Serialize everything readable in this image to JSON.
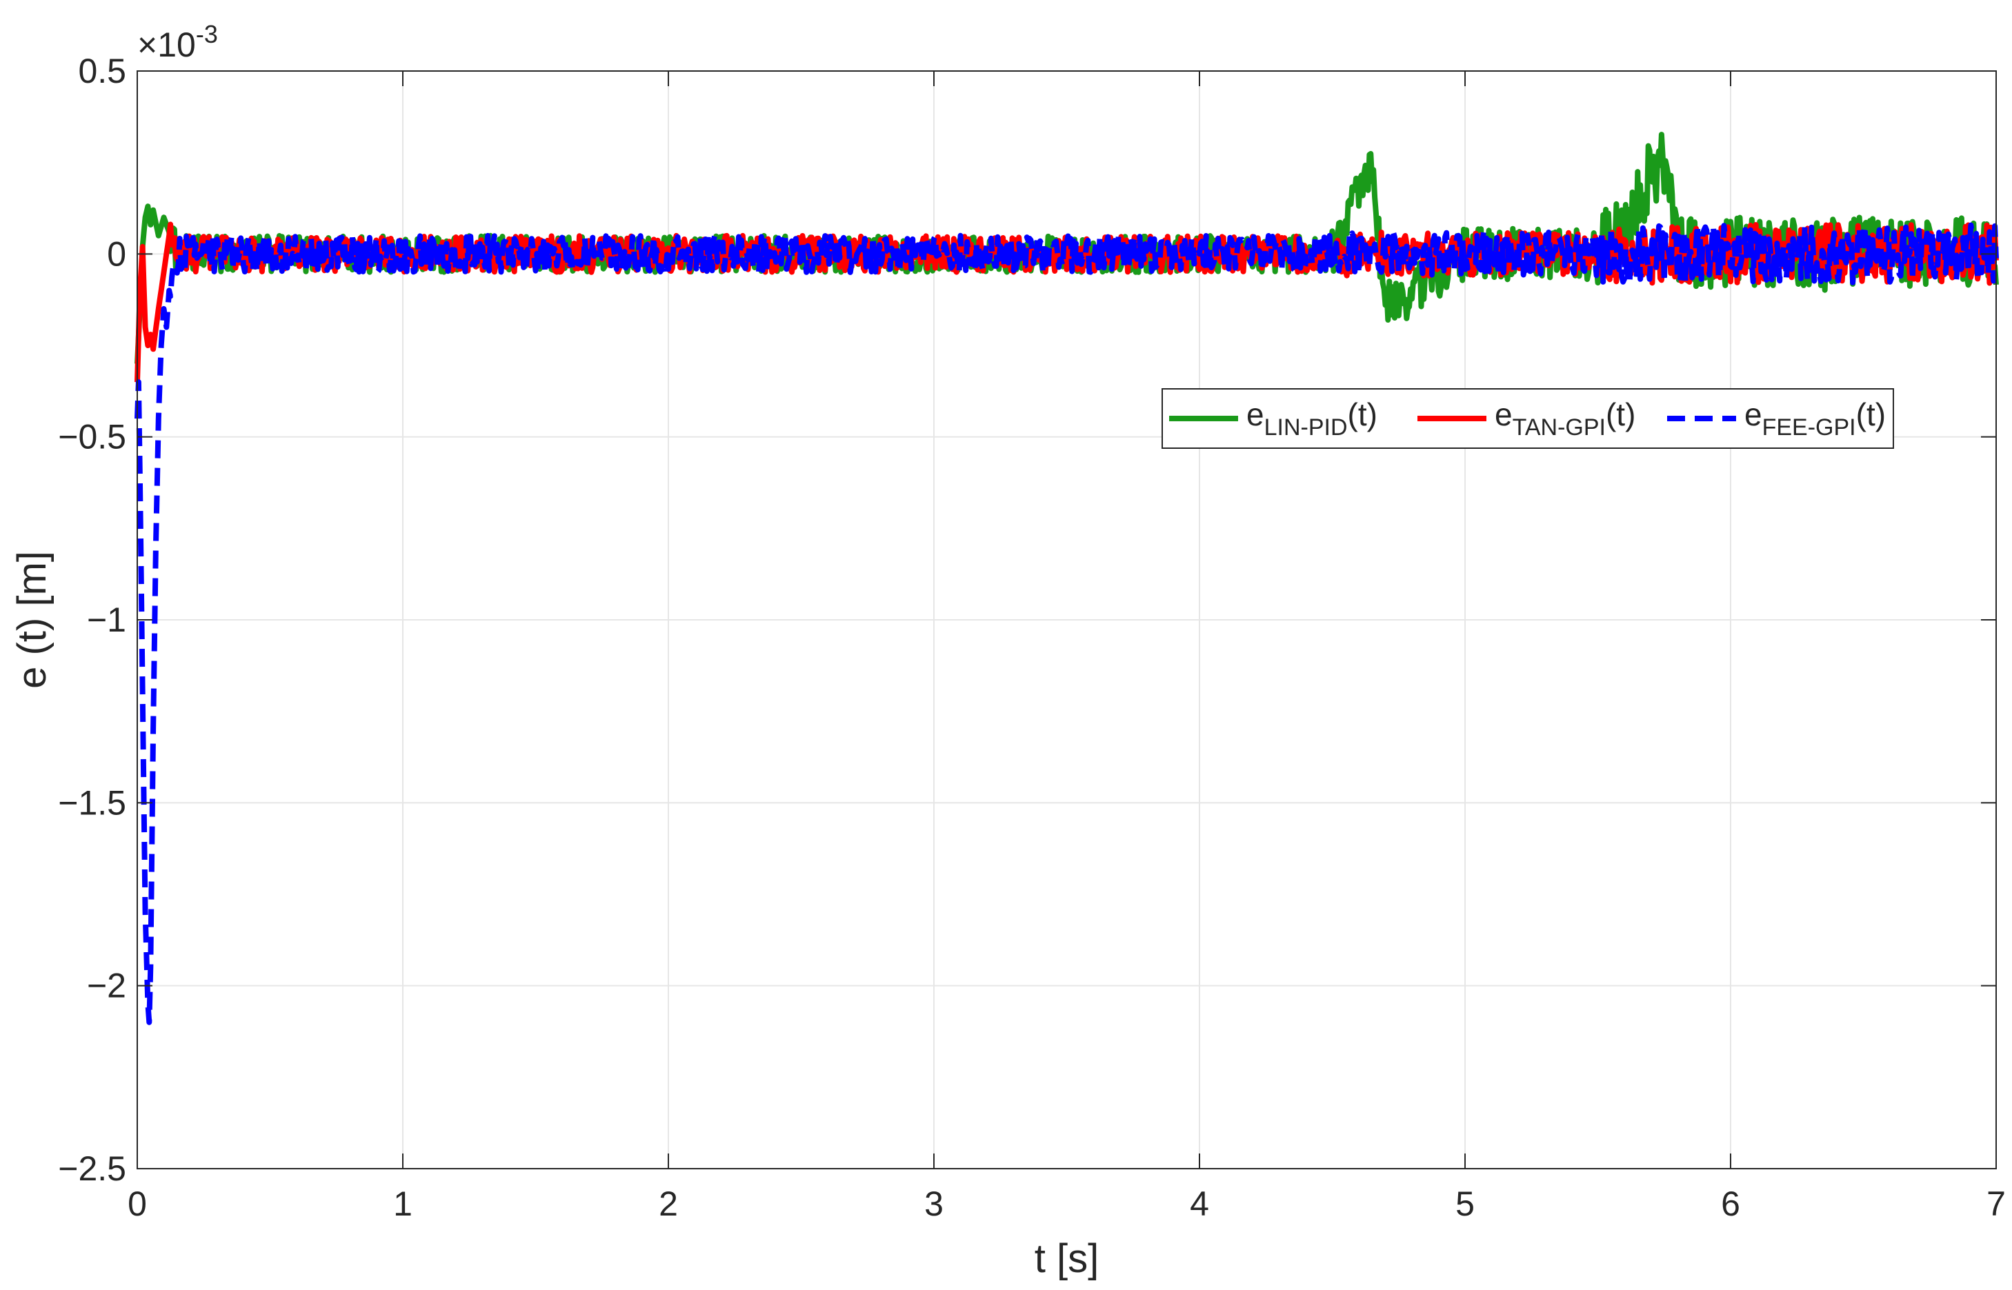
{
  "chart_data": {
    "type": "line",
    "xlabel": "t [s]",
    "ylabel": "e (t) [m]",
    "exponent_label": "×10",
    "exponent_power": "-3",
    "xlim": [
      0,
      7
    ],
    "ylim": [
      -2.5,
      0.5
    ],
    "y_scale_factor": 0.001,
    "x_ticks": [
      0,
      1,
      2,
      3,
      4,
      5,
      6,
      7
    ],
    "x_tick_labels": [
      "0",
      "1",
      "2",
      "3",
      "4",
      "5",
      "6",
      "7"
    ],
    "y_ticks": [
      -2.5,
      -2,
      -1.5,
      -1,
      -0.5,
      0,
      0.5
    ],
    "y_tick_labels": [
      "−2.5",
      "−2",
      "−1.5",
      "−1",
      "−0.5",
      "0",
      "0.5"
    ],
    "grid": true,
    "legend_position": "upper-right",
    "legend_layout": "horizontal",
    "series": [
      {
        "name_base": "e",
        "name_sub": "LIN-PID",
        "name_suffix": "(t)",
        "color": "#1a9a1a",
        "style": "solid",
        "x": [
          0,
          0.01,
          0.02,
          0.03,
          0.04,
          0.05,
          0.06,
          0.08,
          0.1,
          0.15,
          0.5,
          1,
          2,
          3,
          3.5,
          4,
          4.5,
          4.65,
          4.7,
          5,
          5.5,
          5.75,
          5.8,
          6,
          6.5,
          7
        ],
        "y": [
          -0.3,
          -0.15,
          0.02,
          0.1,
          0.13,
          0.08,
          0.12,
          0.05,
          0.1,
          0.0,
          0.0,
          0.0,
          0.0,
          0.0,
          0.0,
          0.0,
          0.0,
          0.24,
          -0.15,
          0.0,
          0.0,
          0.26,
          0.0,
          0.0,
          0.0,
          0.0
        ],
        "noise_amplitude": [
          0.05,
          0.07,
          0.1
        ]
      },
      {
        "name_base": "e",
        "name_sub": "TAN-GPI",
        "name_suffix": "(t)",
        "color": "#ff0000",
        "style": "solid",
        "x": [
          0,
          0.01,
          0.02,
          0.03,
          0.04,
          0.05,
          0.06,
          0.08,
          0.1,
          0.12,
          0.15,
          0.5,
          1,
          2,
          3,
          4,
          5,
          6,
          7
        ],
        "y": [
          -0.35,
          -0.1,
          0.02,
          -0.2,
          -0.25,
          -0.22,
          -0.26,
          -0.15,
          -0.05,
          0.05,
          0.0,
          0.0,
          0.0,
          0.0,
          0.0,
          0.0,
          0.0,
          0.0,
          0.0
        ],
        "noise_amplitude": [
          0.05,
          0.06,
          0.08
        ]
      },
      {
        "name_base": "e",
        "name_sub": "FEE-GPI",
        "name_suffix": "(t)",
        "color": "#0000ff",
        "style": "dashed",
        "x": [
          0,
          0.005,
          0.01,
          0.02,
          0.03,
          0.04,
          0.045,
          0.05,
          0.06,
          0.07,
          0.08,
          0.09,
          0.1,
          0.11,
          0.12,
          0.14,
          0.16,
          0.2,
          0.5,
          1,
          2,
          3,
          4,
          5,
          6,
          7
        ],
        "y": [
          -0.45,
          -0.35,
          -0.6,
          -1.2,
          -1.8,
          -2.05,
          -2.1,
          -1.95,
          -1.3,
          -0.8,
          -0.45,
          -0.25,
          -0.15,
          -0.2,
          -0.1,
          -0.05,
          0.0,
          0.0,
          0.0,
          0.0,
          0.0,
          0.0,
          0.0,
          0.0,
          0.0,
          0.0
        ],
        "noise_amplitude": [
          0.05,
          0.06,
          0.08
        ]
      }
    ]
  }
}
